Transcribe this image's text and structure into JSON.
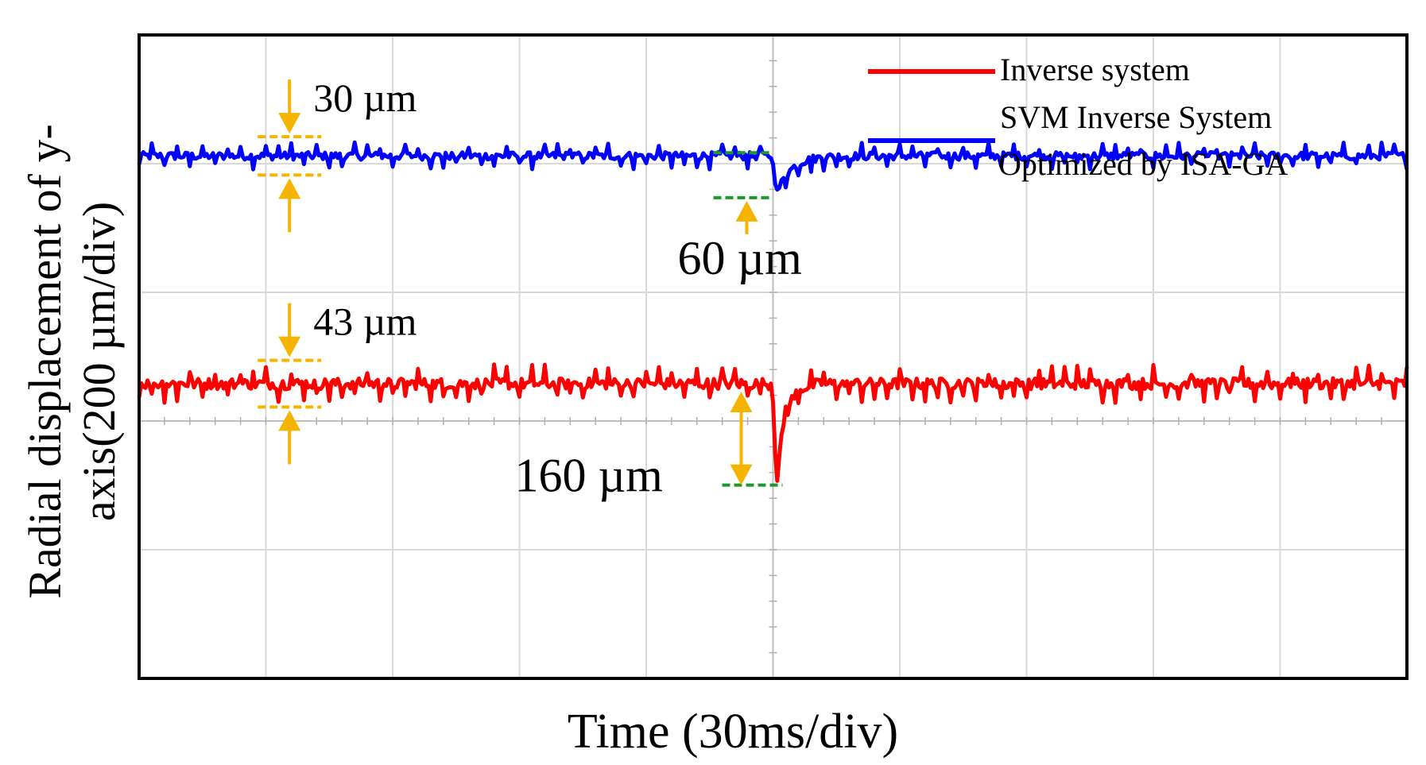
{
  "chart_data": {
    "type": "line",
    "title": "",
    "xlabel": "Time (30ms/div)",
    "ylabel_line1": "Radial displacement of y-",
    "ylabel_line2": "axis(200 µm/div)",
    "x_divisions": 10,
    "y_divisions": 5,
    "x_range_ms": [
      0,
      300
    ],
    "disturbance_time_ms": 150,
    "series": [
      {
        "name": "Inverse system",
        "color": "#ff0000",
        "baseline_um": -542,
        "ripple_um": 43,
        "dip_um": 160,
        "recovery_ms": 6
      },
      {
        "name": "SVM Inverse System Optimized by ISA-GA",
        "legend_line1": "SVM Inverse System",
        "legend_line2": "Optimized by ISA-GA",
        "color": "#0000ff",
        "baseline_um": -188,
        "ripple_um": 30,
        "dip_um": 60,
        "recovery_ms": 10
      }
    ],
    "annotations": [
      {
        "text": "30 µm",
        "series": "SVM Inverse System Optimized by ISA-GA",
        "kind": "ripple"
      },
      {
        "text": "60 µm",
        "series": "SVM Inverse System Optimized by ISA-GA",
        "kind": "dip"
      },
      {
        "text": "43 µm",
        "series": "Inverse system",
        "kind": "ripple"
      },
      {
        "text": "160 µm",
        "series": "Inverse system",
        "kind": "dip"
      }
    ],
    "legend": {
      "position": "top-right",
      "entries": [
        "Inverse system",
        "SVM Inverse System",
        "Optimized by ISA-GA"
      ]
    },
    "colors": {
      "annotation_arrow": "#f4b400",
      "annotation_dash_green": "#1a9a2a",
      "grid": "#d9d9d9",
      "frame": "#000000"
    }
  }
}
